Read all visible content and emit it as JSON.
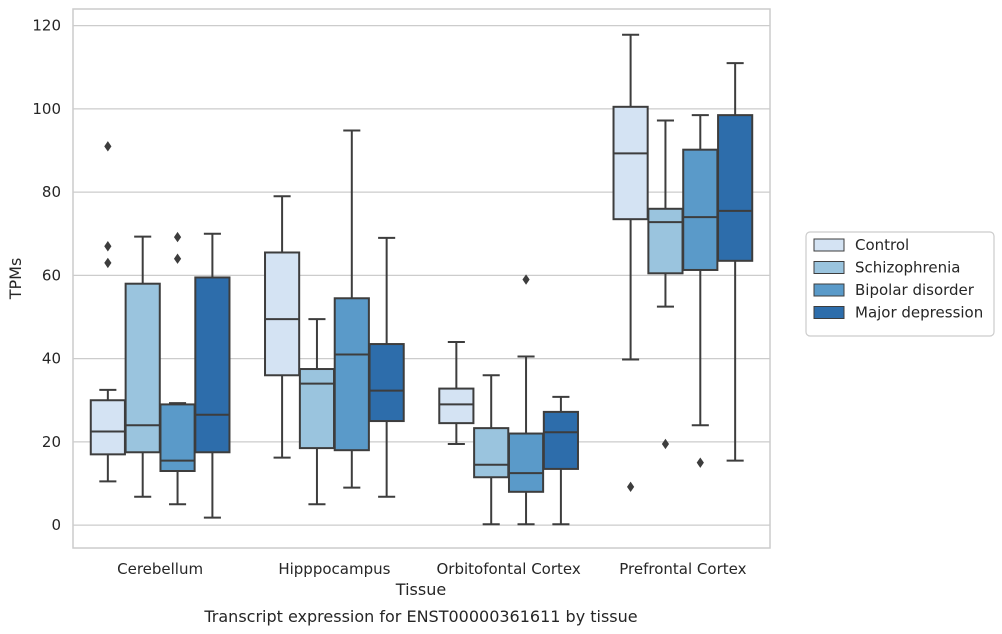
{
  "chart_data": {
    "type": "box",
    "title": "",
    "xlabel": "Tissue",
    "ylabel": "TPMs",
    "caption": "Transcript expression for ENST00000361611 by tissue",
    "ylim": [
      -5.5,
      124
    ],
    "yticks": [
      0,
      20,
      40,
      60,
      80,
      100,
      120
    ],
    "grid": true,
    "legend_position": "right-outside",
    "categories": [
      "Cerebellum",
      "Hipppocampus",
      "Orbitofontal Cortex",
      "Prefrontal Cortex"
    ],
    "series": [
      {
        "name": "Control",
        "color": "#d4e3f3",
        "boxes": [
          {
            "whislo": 10.5,
            "q1": 17,
            "med": 22.5,
            "q3": 30,
            "whishi": 32.5,
            "fliers": [
              63,
              67,
              91
            ]
          },
          {
            "whislo": 16.2,
            "q1": 36,
            "med": 49.5,
            "q3": 65.5,
            "whishi": 79,
            "fliers": []
          },
          {
            "whislo": 19.5,
            "q1": 24.5,
            "med": 29,
            "q3": 32.8,
            "whishi": 44,
            "fliers": []
          },
          {
            "whislo": 39.8,
            "q1": 73.5,
            "med": 89.3,
            "q3": 100.5,
            "whishi": 117.8,
            "fliers": [
              9.2
            ]
          }
        ]
      },
      {
        "name": "Schizophrenia",
        "color": "#9ac4de",
        "boxes": [
          {
            "whislo": 6.8,
            "q1": 17.5,
            "med": 24,
            "q3": 58,
            "whishi": 69.3,
            "fliers": []
          },
          {
            "whislo": 5,
            "q1": 18.5,
            "med": 34,
            "q3": 37.5,
            "whishi": 49.5,
            "fliers": []
          },
          {
            "whislo": 0.2,
            "q1": 11.5,
            "med": 14.5,
            "q3": 23.3,
            "whishi": 36,
            "fliers": []
          },
          {
            "whislo": 52.5,
            "q1": 60.5,
            "med": 72.8,
            "q3": 76,
            "whishi": 97.2,
            "fliers": [
              19.5
            ]
          }
        ]
      },
      {
        "name": "Bipolar disorder",
        "color": "#5a9ac9",
        "boxes": [
          {
            "whislo": 5,
            "q1": 13,
            "med": 15.5,
            "q3": 29,
            "whishi": 29.3,
            "fliers": [
              64,
              69.2
            ]
          },
          {
            "whislo": 9,
            "q1": 18,
            "med": 41,
            "q3": 54.5,
            "whishi": 94.8,
            "fliers": []
          },
          {
            "whislo": 0.2,
            "q1": 8,
            "med": 12.5,
            "q3": 22,
            "whishi": 40.5,
            "fliers": [
              59
            ]
          },
          {
            "whislo": 24,
            "q1": 61.3,
            "med": 74,
            "q3": 90.2,
            "whishi": 98.5,
            "fliers": [
              15
            ]
          }
        ]
      },
      {
        "name": "Major depression",
        "color": "#2d6dab",
        "boxes": [
          {
            "whislo": 1.8,
            "q1": 17.5,
            "med": 26.5,
            "q3": 59.5,
            "whishi": 70,
            "fliers": []
          },
          {
            "whislo": 6.8,
            "q1": 25,
            "med": 32.3,
            "q3": 43.5,
            "whishi": 69,
            "fliers": []
          },
          {
            "whislo": 0.2,
            "q1": 13.5,
            "med": 22.3,
            "q3": 27.2,
            "whishi": 30.8,
            "fliers": []
          },
          {
            "whislo": 15.5,
            "q1": 63.5,
            "med": 75.5,
            "q3": 98.5,
            "whishi": 111,
            "fliers": []
          }
        ]
      }
    ]
  }
}
